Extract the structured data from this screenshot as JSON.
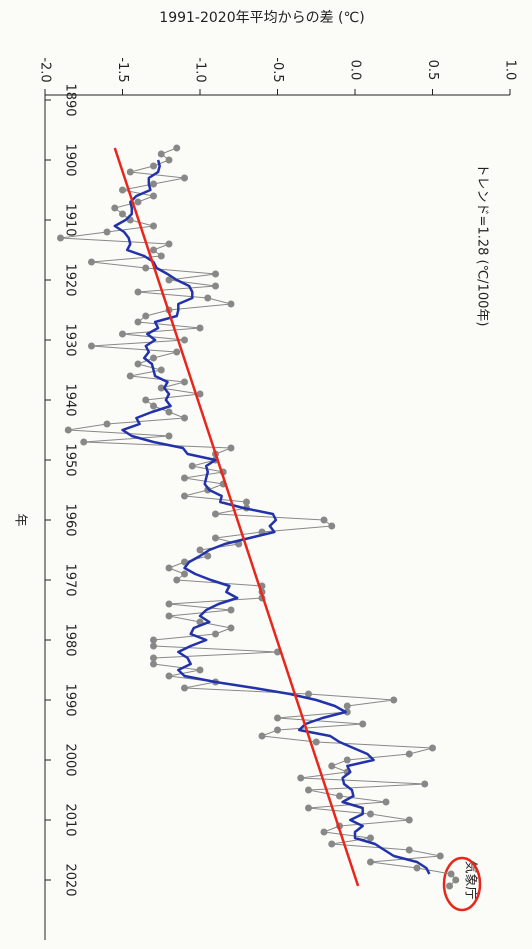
{
  "chart_data": {
    "type": "line",
    "title": "1991-2020年平均からの差 (℃)",
    "xlabel": "年",
    "annotation": "トレンド=1.28 (℃/100年)",
    "source": "気象庁",
    "x": [
      1898,
      1899,
      1900,
      1901,
      1902,
      1903,
      1904,
      1905,
      1906,
      1907,
      1908,
      1909,
      1910,
      1911,
      1912,
      1913,
      1914,
      1915,
      1916,
      1917,
      1918,
      1919,
      1920,
      1921,
      1922,
      1923,
      1924,
      1925,
      1926,
      1927,
      1928,
      1929,
      1930,
      1931,
      1932,
      1933,
      1934,
      1935,
      1936,
      1937,
      1938,
      1939,
      1940,
      1941,
      1942,
      1943,
      1944,
      1945,
      1946,
      1947,
      1948,
      1949,
      1950,
      1951,
      1952,
      1953,
      1954,
      1955,
      1956,
      1957,
      1958,
      1959,
      1960,
      1961,
      1962,
      1963,
      1964,
      1965,
      1966,
      1967,
      1968,
      1969,
      1970,
      1971,
      1972,
      1973,
      1974,
      1975,
      1976,
      1977,
      1978,
      1979,
      1980,
      1981,
      1982,
      1983,
      1984,
      1985,
      1986,
      1987,
      1988,
      1989,
      1990,
      1991,
      1992,
      1993,
      1994,
      1995,
      1996,
      1997,
      1998,
      1999,
      2000,
      2001,
      2002,
      2003,
      2004,
      2005,
      2006,
      2007,
      2008,
      2009,
      2010,
      2011,
      2012,
      2013,
      2014,
      2015,
      2016,
      2017,
      2018,
      2019,
      2020,
      2021
    ],
    "series": [
      {
        "color": "#888888",
        "values": [
          -1.15,
          -1.25,
          -1.2,
          -1.3,
          -1.45,
          -1.1,
          -1.3,
          -1.5,
          -1.3,
          -1.4,
          -1.55,
          -1.5,
          -1.45,
          -1.3,
          -1.6,
          -1.9,
          -1.2,
          -1.3,
          -1.25,
          -1.7,
          -1.35,
          -0.9,
          -1.2,
          -0.9,
          -1.4,
          -0.95,
          -0.8,
          -1.2,
          -1.35,
          -1.4,
          -1.0,
          -1.5,
          -1.1,
          -1.7,
          -1.15,
          -1.3,
          -1.4,
          -1.25,
          -1.45,
          -1.1,
          -1.25,
          -1.0,
          -1.35,
          -1.3,
          -1.2,
          -1.1,
          -1.6,
          -1.85,
          -1.2,
          -1.75,
          -0.8,
          -0.9,
          -0.9,
          -1.05,
          -0.85,
          -1.1,
          -0.85,
          -0.95,
          -1.1,
          -0.7,
          -0.7,
          -0.9,
          -0.2,
          -0.15,
          -0.6,
          -0.9,
          -0.75,
          -1.0,
          -0.95,
          -1.1,
          -1.2,
          -1.1,
          -1.15,
          -0.6,
          -0.6,
          -0.6,
          -1.2,
          -0.8,
          -1.2,
          -1.0,
          -0.8,
          -0.9,
          -1.3,
          -1.3,
          -0.5,
          -1.3,
          -1.3,
          -1.0,
          -1.2,
          -0.9,
          -1.1,
          -0.3,
          0.25,
          -0.05,
          -0.05,
          -0.5,
          0.05,
          -0.5,
          -0.6,
          -0.25,
          0.5,
          0.35,
          -0.05,
          -0.15,
          -0.05,
          -0.35,
          0.45,
          -0.3,
          -0.1,
          0.2,
          -0.3,
          0.1,
          0.35,
          -0.1,
          -0.2,
          0.1,
          -0.15,
          0.35,
          0.55,
          0.1,
          0.4,
          0.62,
          0.65,
          0.61
        ]
      },
      {
        "color": "#2233aa",
        "values": [
          null,
          null,
          -1.27,
          -1.26,
          -1.27,
          -1.33,
          -1.33,
          -1.32,
          -1.41,
          -1.45,
          -1.44,
          -1.44,
          -1.48,
          -1.55,
          -1.49,
          -1.46,
          -1.45,
          -1.47,
          -1.36,
          -1.3,
          -1.28,
          -1.21,
          -1.15,
          -1.07,
          -1.05,
          -1.05,
          -1.14,
          -1.14,
          -1.15,
          -1.29,
          -1.27,
          -1.34,
          -1.29,
          -1.35,
          -1.33,
          -1.36,
          -1.31,
          -1.3,
          -1.29,
          -1.21,
          -1.23,
          -1.2,
          -1.22,
          -1.19,
          -1.31,
          -1.41,
          -1.39,
          -1.5,
          -1.44,
          -1.3,
          -1.11,
          -1.08,
          -0.9,
          -0.96,
          -0.95,
          -0.96,
          -0.97,
          -0.94,
          -0.86,
          -0.87,
          -0.72,
          -0.53,
          -0.51,
          -0.55,
          -0.52,
          -0.68,
          -0.84,
          -0.94,
          -1.0,
          -1.07,
          -1.1,
          -1.03,
          -0.93,
          -0.81,
          -0.83,
          -0.76,
          -0.88,
          -0.96,
          -1.0,
          -0.94,
          -1.04,
          -1.06,
          -0.96,
          -1.06,
          -1.14,
          -1.08,
          -1.06,
          -1.14,
          -1.1,
          -0.9,
          -0.65,
          -0.42,
          -0.25,
          -0.13,
          -0.06,
          -0.21,
          -0.32,
          -0.36,
          -0.16,
          -0.1,
          -0.01,
          0.08,
          0.12,
          -0.05,
          -0.03,
          -0.08,
          -0.07,
          -0.02,
          -0.01,
          -0.08,
          0.05,
          0.05,
          -0.03,
          0.05,
          0,
          0,
          0.13,
          0.19,
          0.25,
          0.4,
          0.46,
          0.48,
          null,
          null
        ]
      }
    ],
    "trend": {
      "x": [
        1898,
        2021
      ],
      "values": [
        -1.55,
        0.02
      ],
      "color": "#e8261c"
    },
    "xlim": [
      1890,
      2030
    ],
    "xticks": [
      1890,
      1900,
      1910,
      1920,
      1930,
      1940,
      1950,
      1960,
      1970,
      1980,
      1990,
      2000,
      2010,
      2020
    ],
    "ylim": [
      -2.0,
      1.0
    ],
    "yticks": [
      {
        "value": -2.0,
        "label": "-2.0"
      },
      -1.5,
      {
        "value": -1.0,
        "label": "-1.0"
      },
      -0.5,
      {
        "value": 0.0,
        "label": "0.0"
      },
      0.5,
      {
        "value": 1.0,
        "label": "1.0"
      }
    ]
  }
}
